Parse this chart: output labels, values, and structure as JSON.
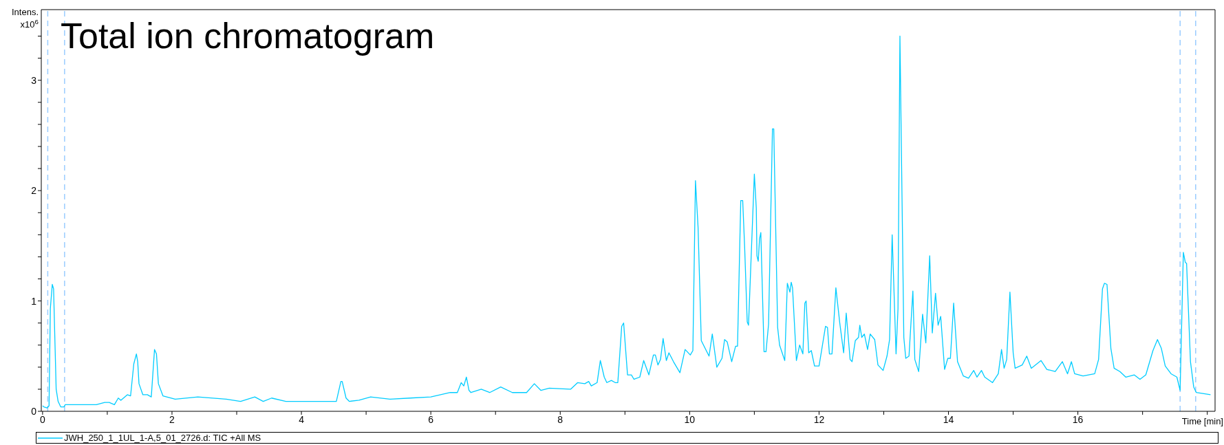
{
  "chart_data": {
    "type": "line",
    "title": "Total ion chromatogram",
    "xlabel": "Time [min]",
    "ylabel": "Intens. x10$^{6}$",
    "legend": "bottom left",
    "marker": "none",
    "line_style": "solid",
    "xlim": [
      -0.02,
      18.12
    ],
    "ylim": [
      0,
      3.64
    ],
    "xticks": [
      0,
      {
        "value": 1,
        "label": null
      },
      2,
      {
        "value": 3,
        "label": null
      },
      4,
      {
        "value": 5,
        "label": null
      },
      6,
      {
        "value": 7,
        "label": null
      },
      8,
      {
        "value": 9,
        "label": null
      },
      10,
      {
        "value": 11,
        "label": null
      },
      12,
      {
        "value": 13,
        "label": null
      },
      14,
      {
        "value": 15,
        "label": null
      },
      16,
      {
        "value": 17,
        "label": null
      },
      {
        "value": 18,
        "label": null
      }
    ],
    "yticks": [
      0,
      {
        "value": 0.2,
        "label": null
      },
      {
        "value": 0.4,
        "label": null
      },
      {
        "value": 0.6,
        "label": null
      },
      {
        "value": 0.8,
        "label": null
      },
      1,
      {
        "value": 1.2,
        "label": null
      },
      {
        "value": 1.4,
        "label": null
      },
      {
        "value": 1.6,
        "label": null
      },
      {
        "value": 1.8,
        "label": null
      },
      2,
      {
        "value": 2.2,
        "label": null
      },
      {
        "value": 2.4,
        "label": null
      },
      {
        "value": 2.6,
        "label": null
      },
      {
        "value": 2.8,
        "label": null
      },
      3,
      {
        "value": 3.2,
        "label": null
      },
      {
        "value": 3.4,
        "label": null
      }
    ],
    "ref_lines": [
      {
        "axis": "x",
        "value": 0.08,
        "color": "#99ccff",
        "line_style": "dashed"
      },
      {
        "axis": "x",
        "value": 0.34,
        "color": "#99ccff",
        "line_style": "dashed"
      },
      {
        "axis": "x",
        "value": 17.58,
        "color": "#99ccff",
        "line_style": "dashed"
      },
      {
        "axis": "x",
        "value": 17.82,
        "color": "#99ccff",
        "line_style": "dashed"
      }
    ],
    "series": [
      {
        "name": "JWH_250_1_1UL_1-A,5_01_2726.d: TIC +All MS",
        "color": "#00ccff",
        "x": [
          0,
          0.02,
          0.07,
          0.1,
          0.12,
          0.15,
          0.17,
          0.21,
          0.24,
          0.28,
          0.33,
          0.35,
          0.83,
          0.96,
          1.03,
          1.11,
          1.17,
          1.21,
          1.31,
          1.36,
          1.41,
          1.45,
          1.47,
          1.49,
          1.55,
          1.62,
          1.68,
          1.73,
          1.76,
          1.79,
          1.86,
          2.05,
          2.4,
          2.84,
          3.06,
          3.28,
          3.41,
          3.54,
          3.76,
          4.15,
          4.54,
          4.61,
          4.63,
          4.69,
          4.74,
          4.89,
          5.07,
          5.37,
          5.68,
          6.0,
          6.3,
          6.41,
          6.47,
          6.51,
          6.55,
          6.59,
          6.62,
          6.78,
          6.91,
          7.08,
          7.26,
          7.48,
          7.6,
          7.7,
          7.83,
          8.16,
          8.27,
          8.38,
          8.44,
          8.48,
          8.57,
          8.62,
          8.68,
          8.72,
          8.79,
          8.85,
          8.89,
          8.95,
          8.98,
          9.04,
          9.1,
          9.14,
          9.23,
          9.29,
          9.37,
          9.44,
          9.47,
          9.51,
          9.55,
          9.59,
          9.64,
          9.68,
          9.75,
          9.85,
          9.93,
          10.01,
          10.05,
          10.09,
          10.13,
          10.18,
          10.3,
          10.35,
          10.42,
          10.5,
          10.54,
          10.58,
          10.65,
          10.71,
          10.74,
          10.79,
          10.82,
          10.85,
          10.89,
          10.91,
          11.0,
          11.03,
          11.04,
          11.06,
          11.08,
          11.1,
          11.15,
          11.18,
          11.22,
          11.28,
          11.3,
          11.36,
          11.39,
          11.47,
          11.51,
          11.55,
          11.57,
          11.59,
          11.65,
          11.7,
          11.75,
          11.78,
          11.8,
          11.84,
          11.88,
          11.93,
          12.0,
          12.1,
          12.13,
          12.16,
          12.2,
          12.26,
          12.32,
          12.38,
          12.42,
          12.48,
          12.51,
          12.56,
          12.61,
          12.63,
          12.66,
          12.7,
          12.75,
          12.79,
          12.86,
          12.91,
          12.99,
          13.05,
          13.09,
          13.13,
          13.19,
          13.22,
          13.25,
          13.31,
          13.34,
          13.39,
          13.45,
          13.48,
          13.54,
          13.6,
          13.65,
          13.71,
          13.75,
          13.8,
          13.84,
          13.88,
          13.94,
          13.99,
          14.03,
          14.08,
          14.14,
          14.23,
          14.31,
          14.39,
          14.44,
          14.51,
          14.56,
          14.68,
          14.77,
          14.82,
          14.86,
          14.9,
          14.95,
          15.0,
          15.03,
          15.14,
          15.21,
          15.28,
          15.43,
          15.52,
          15.65,
          15.76,
          15.84,
          15.9,
          15.95,
          16.08,
          16.26,
          16.32,
          16.38,
          16.41,
          16.45,
          16.51,
          16.56,
          16.65,
          16.74,
          16.87,
          16.96,
          17.05,
          17.16,
          17.23,
          17.29,
          17.35,
          17.44,
          17.53,
          17.58,
          17.63,
          17.66,
          17.68,
          17.74,
          17.79,
          17.83,
          18.05
        ],
        "values": [
          0.05,
          0.04,
          0.03,
          0.05,
          0.93,
          1.15,
          1.11,
          0.2,
          0.09,
          0.04,
          0.04,
          0.06,
          0.06,
          0.08,
          0.08,
          0.06,
          0.12,
          0.1,
          0.15,
          0.14,
          0.43,
          0.52,
          0.45,
          0.25,
          0.15,
          0.15,
          0.13,
          0.56,
          0.52,
          0.25,
          0.14,
          0.11,
          0.13,
          0.11,
          0.09,
          0.13,
          0.09,
          0.12,
          0.09,
          0.09,
          0.09,
          0.27,
          0.27,
          0.12,
          0.09,
          0.1,
          0.13,
          0.11,
          0.12,
          0.13,
          0.17,
          0.17,
          0.26,
          0.23,
          0.31,
          0.19,
          0.17,
          0.2,
          0.17,
          0.22,
          0.17,
          0.17,
          0.25,
          0.19,
          0.21,
          0.2,
          0.26,
          0.25,
          0.27,
          0.23,
          0.26,
          0.46,
          0.31,
          0.26,
          0.28,
          0.26,
          0.26,
          0.77,
          0.8,
          0.33,
          0.33,
          0.29,
          0.31,
          0.46,
          0.33,
          0.51,
          0.51,
          0.42,
          0.47,
          0.66,
          0.46,
          0.53,
          0.45,
          0.35,
          0.56,
          0.51,
          0.55,
          2.09,
          1.67,
          0.64,
          0.5,
          0.7,
          0.4,
          0.48,
          0.65,
          0.63,
          0.45,
          0.59,
          0.59,
          1.91,
          1.91,
          1.49,
          0.81,
          0.78,
          2.15,
          1.84,
          1.41,
          1.36,
          1.56,
          1.62,
          0.54,
          0.54,
          0.79,
          2.56,
          2.56,
          0.76,
          0.6,
          0.46,
          1.16,
          1.08,
          1.17,
          1.12,
          0.46,
          0.6,
          0.52,
          0.98,
          1.0,
          0.53,
          0.55,
          0.41,
          0.41,
          0.77,
          0.76,
          0.52,
          0.52,
          1.12,
          0.8,
          0.53,
          0.89,
          0.47,
          0.45,
          0.64,
          0.67,
          0.78,
          0.67,
          0.7,
          0.56,
          0.7,
          0.65,
          0.42,
          0.37,
          0.5,
          0.65,
          1.6,
          0.52,
          0.93,
          3.4,
          0.67,
          0.48,
          0.5,
          1.09,
          0.47,
          0.36,
          0.88,
          0.62,
          1.41,
          0.71,
          1.07,
          0.78,
          0.86,
          0.38,
          0.48,
          0.48,
          0.98,
          0.45,
          0.32,
          0.3,
          0.37,
          0.31,
          0.37,
          0.31,
          0.26,
          0.34,
          0.56,
          0.39,
          0.47,
          1.08,
          0.53,
          0.39,
          0.42,
          0.5,
          0.39,
          0.46,
          0.38,
          0.36,
          0.45,
          0.34,
          0.45,
          0.34,
          0.32,
          0.34,
          0.47,
          1.11,
          1.16,
          1.15,
          0.57,
          0.39,
          0.36,
          0.31,
          0.33,
          0.29,
          0.33,
          0.55,
          0.65,
          0.57,
          0.41,
          0.34,
          0.31,
          0.19,
          1.44,
          1.35,
          1.34,
          0.45,
          0.22,
          0.17,
          0.15
        ]
      }
    ]
  }
}
